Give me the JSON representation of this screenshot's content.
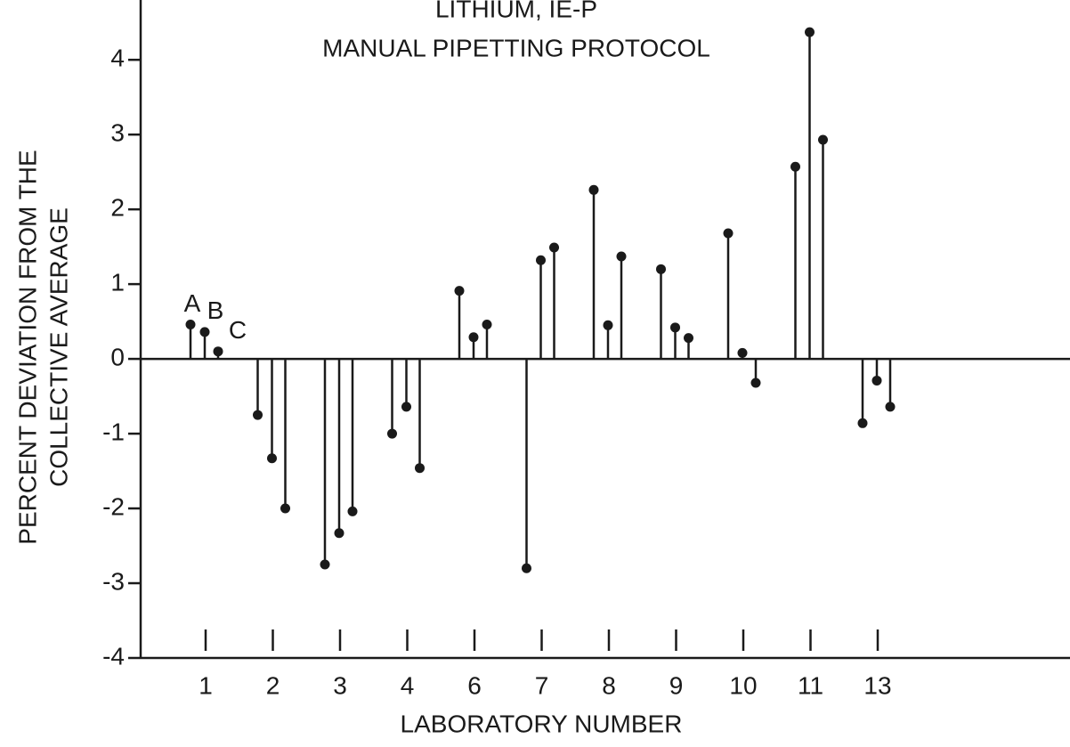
{
  "chart_data": {
    "type": "stem",
    "title": "LITHIUM, IE-P",
    "subtitle": "MANUAL PIPETTING PROTOCOL",
    "y_label": [
      "PERCENT DEVIATION FROM THE",
      "COLLECTIVE AVERAGE"
    ],
    "x_label": "LABORATORY NUMBER",
    "categories": [
      "1",
      "2",
      "3",
      "4",
      "6",
      "7",
      "8",
      "9",
      "10",
      "11",
      "13"
    ],
    "series": [
      {
        "name": "A",
        "color": "#1a1a1a",
        "values": [
          0.46,
          -0.75,
          -2.75,
          -1.0,
          0.91,
          -2.8,
          2.26,
          1.2,
          1.68,
          2.57,
          -0.86
        ]
      },
      {
        "name": "B",
        "color": "#1a1a1a",
        "values": [
          0.36,
          -1.33,
          -2.33,
          -0.64,
          0.29,
          1.32,
          0.45,
          0.42,
          0.08,
          4.37,
          -0.29
        ]
      },
      {
        "name": "C",
        "color": "#1a1a1a",
        "values": [
          0.1,
          -2.0,
          -2.04,
          -1.46,
          0.46,
          1.49,
          1.37,
          0.28,
          -0.32,
          2.93,
          -0.64
        ]
      }
    ],
    "ylim": [
      -4,
      4.8
    ],
    "yticks": [
      -4,
      -3,
      -2,
      -1,
      0,
      1,
      2,
      3,
      4
    ]
  }
}
